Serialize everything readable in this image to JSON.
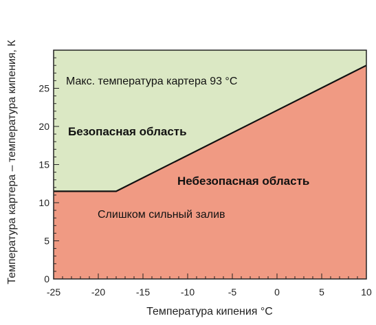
{
  "chart_data": {
    "type": "area",
    "x_label": "Температура кипения °С",
    "y_label": "Температура картера – температура кипения, К",
    "xlim": [
      -25,
      10
    ],
    "ylim": [
      0,
      30
    ],
    "x_ticks": [
      -25,
      -20,
      -15,
      -10,
      -5,
      0,
      5,
      10
    ],
    "y_ticks": [
      0,
      5,
      10,
      15,
      20,
      25
    ],
    "boundary": {
      "x": [
        -25,
        -18,
        10
      ],
      "y": [
        11.5,
        11.5,
        28
      ]
    },
    "regions": [
      {
        "label": "Безопасная область",
        "color": "#dbe8c4",
        "position": "above boundary"
      },
      {
        "label": "Небезопасная область",
        "color": "#f09a83",
        "position": "below boundary"
      }
    ],
    "annotations": [
      {
        "text": "Макс. температура картера 93 °С"
      },
      {
        "text": "Безопасная область"
      },
      {
        "text": "Небезопасная область"
      },
      {
        "text": "Слишком сильный залив"
      }
    ]
  }
}
